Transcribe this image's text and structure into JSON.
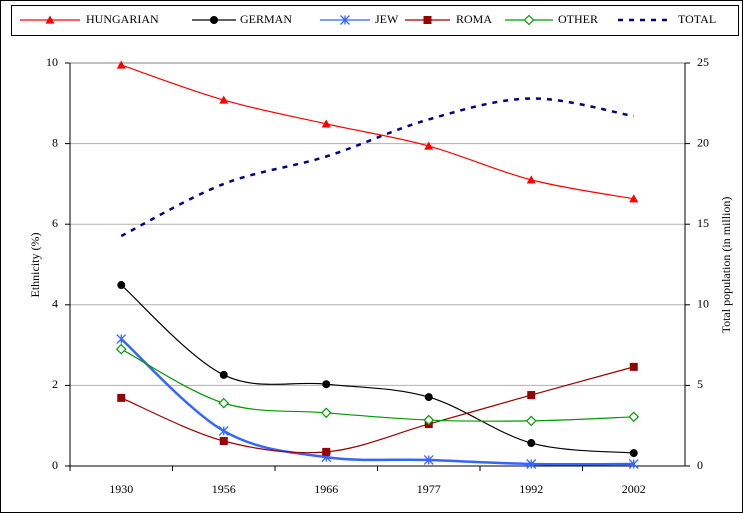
{
  "chart_data": {
    "type": "line",
    "categories": [
      "1930",
      "1956",
      "1966",
      "1977",
      "1992",
      "2002"
    ],
    "y_label": "Ethnicity (%)",
    "y2_label": "Total population (in million)",
    "ylim": [
      0,
      10
    ],
    "yticks": [
      0,
      2,
      4,
      6,
      8,
      10
    ],
    "y2lim": [
      0,
      25
    ],
    "y2ticks": [
      0,
      5,
      10,
      15,
      20,
      25
    ],
    "grid": true,
    "legend": "top",
    "smooth": true,
    "series": [
      {
        "name": "HUNGARIAN",
        "color": "#ff0000",
        "marker": "triangle",
        "values": [
          9.95,
          9.08,
          8.49,
          7.94,
          7.1,
          6.63
        ]
      },
      {
        "name": "GERMAN",
        "color": "#000000",
        "marker": "circle",
        "values": [
          4.49,
          2.26,
          2.03,
          1.71,
          0.57,
          0.32
        ]
      },
      {
        "name": "JEW",
        "color": "#3366ff",
        "marker": "star",
        "values": [
          3.15,
          0.87,
          0.22,
          0.15,
          0.05,
          0.05
        ]
      },
      {
        "name": "ROMA",
        "color": "#990000",
        "marker": "square",
        "values": [
          1.69,
          0.62,
          0.35,
          1.04,
          1.76,
          2.46
        ]
      },
      {
        "name": "OTHER",
        "color": "#009900",
        "marker": "diamond",
        "values": [
          2.9,
          1.56,
          1.32,
          1.14,
          1.12,
          1.22
        ]
      },
      {
        "name": "TOTAL",
        "color": "#000080",
        "marker": "none",
        "dashed": true,
        "axis": "y2",
        "values": [
          14.27,
          17.5,
          19.2,
          21.5,
          22.8,
          21.7
        ]
      }
    ]
  }
}
